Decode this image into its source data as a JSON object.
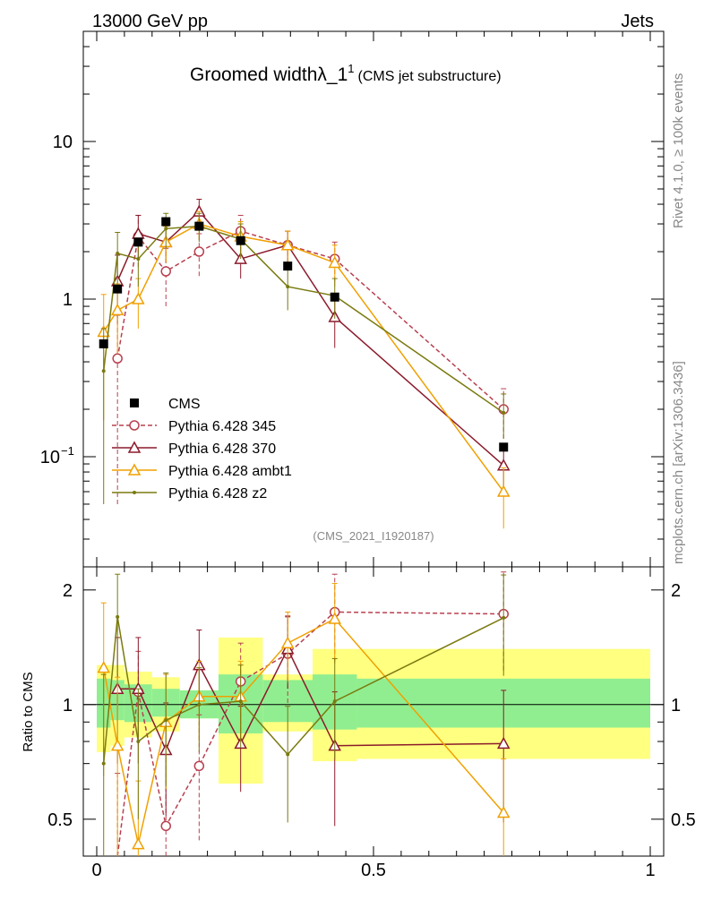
{
  "header": {
    "left": "13000 GeV pp",
    "right": "Jets",
    "side_top": "Rivet 4.1.0, ≥ 100k events",
    "side_bottom": "mcplots.cern.ch [arXiv:1306.3436]"
  },
  "chart_data": {
    "type": "line",
    "title_main": "Groomed widthλ_1",
    "title_sup": "1",
    "title_sub": "(CMS jet substructure)",
    "analysis": "(CMS_2021_I1920187)",
    "xlim": [
      0,
      1
    ],
    "ylim_main": [
      0.02,
      50
    ],
    "ylim_ratio": [
      0.4,
      2.3
    ],
    "ylabel_ratio": "Ratio to CMS",
    "x_ticks": [
      {
        "v": 0,
        "label": "0"
      },
      {
        "v": 0.5,
        "label": "0.5"
      },
      {
        "v": 1,
        "label": "1"
      }
    ],
    "main_ticks": [
      {
        "v": 10,
        "label": "10"
      },
      {
        "v": 1,
        "label": "1"
      },
      {
        "v": 0.1,
        "label": "10"
      }
    ],
    "main_tick_exp": "−1",
    "ratio_ticks": [
      {
        "v": 2,
        "label": "2"
      },
      {
        "v": 1,
        "label": "1"
      },
      {
        "v": 0.5,
        "label": "0.5"
      }
    ],
    "bins": [
      [
        0,
        0.025
      ],
      [
        0.025,
        0.05
      ],
      [
        0.05,
        0.1
      ],
      [
        0.1,
        0.15
      ],
      [
        0.15,
        0.22
      ],
      [
        0.22,
        0.3
      ],
      [
        0.3,
        0.39
      ],
      [
        0.39,
        0.47
      ],
      [
        0.47,
        1.0
      ]
    ],
    "band_inner": [
      [
        0.87,
        1.17
      ],
      [
        0.91,
        1.16
      ],
      [
        0.9,
        1.13
      ],
      [
        0.93,
        1.1
      ],
      [
        0.92,
        1.09
      ],
      [
        0.84,
        1.2
      ],
      [
        0.9,
        1.16
      ],
      [
        0.86,
        1.2
      ],
      [
        0.87,
        1.17
      ]
    ],
    "band_outer": [
      [
        0.75,
        1.27
      ],
      [
        0.78,
        1.27
      ],
      [
        0.82,
        1.22
      ],
      [
        0.85,
        1.18
      ],
      [
        0.92,
        1.09
      ],
      [
        0.62,
        1.5
      ],
      [
        0.85,
        1.2
      ],
      [
        0.71,
        1.4
      ],
      [
        0.72,
        1.4
      ]
    ],
    "cms": {
      "name": "CMS",
      "x": [
        0.0125,
        0.0375,
        0.075,
        0.125,
        0.185,
        0.26,
        0.345,
        0.43,
        0.735
      ],
      "y": [
        0.52,
        1.16,
        2.3,
        3.1,
        2.9,
        2.35,
        1.62,
        1.03,
        0.115
      ]
    },
    "series": [
      {
        "name": "Pythia 6.428 345",
        "color": "#b8404f",
        "marker": "circle",
        "dash": "5,3",
        "x": [
          0.0375,
          0.075,
          0.125,
          0.185,
          0.26,
          0.345,
          0.43,
          0.735
        ],
        "y": [
          0.42,
          2.5,
          1.5,
          2.0,
          2.7,
          2.2,
          1.8,
          0.2
        ],
        "err": [
          0.37,
          0.9,
          0.6,
          0.6,
          0.7,
          0.5,
          0.5,
          0.07
        ],
        "ratio": [
          0.36,
          1.08,
          0.48,
          0.69,
          1.15,
          1.36,
          1.75,
          1.73
        ],
        "rerr": [
          0.3,
          0.3,
          0.3,
          0.25,
          0.3,
          0.35,
          0.45,
          0.5
        ]
      },
      {
        "name": "Pythia 6.428 370",
        "color": "#8b1a2b",
        "marker": "triangle",
        "dash": "",
        "x": [
          0.0375,
          0.075,
          0.125,
          0.185,
          0.26,
          0.345,
          0.43,
          0.735
        ],
        "y": [
          1.3,
          2.6,
          2.3,
          3.6,
          1.8,
          2.2,
          0.77,
          0.088
        ],
        "err": [
          0.6,
          0.8,
          0.6,
          0.7,
          0.45,
          0.5,
          0.28,
          0.03
        ],
        "ratio": [
          1.1,
          1.1,
          0.76,
          1.27,
          0.79,
          1.4,
          0.78,
          0.79
        ],
        "rerr": [
          0.4,
          0.4,
          0.25,
          0.3,
          0.2,
          0.3,
          0.3,
          0.3
        ]
      },
      {
        "name": "Pythia 6.428 ambt1",
        "color": "#f0a000",
        "marker": "triangle",
        "dash": "",
        "x": [
          0.0125,
          0.0375,
          0.075,
          0.125,
          0.185,
          0.26,
          0.345,
          0.43,
          0.735
        ],
        "y": [
          0.62,
          0.85,
          1.0,
          2.3,
          3.0,
          2.5,
          2.2,
          1.7,
          0.06
        ],
        "err": [
          0.45,
          0.4,
          0.35,
          0.6,
          0.6,
          0.6,
          0.5,
          0.5,
          0.025
        ],
        "ratio": [
          1.25,
          0.78,
          0.43,
          0.9,
          1.05,
          1.05,
          1.45,
          1.68,
          0.52
        ],
        "rerr": [
          0.6,
          0.4,
          0.2,
          0.3,
          0.25,
          0.25,
          0.3,
          0.4,
          0.2
        ]
      },
      {
        "name": "Pythia 6.428 z2",
        "color": "#7a7a10",
        "marker": "dot",
        "dash": "",
        "x": [
          0.0125,
          0.0375,
          0.075,
          0.125,
          0.185,
          0.26,
          0.345,
          0.43,
          0.735
        ],
        "y": [
          0.35,
          1.95,
          1.8,
          2.8,
          2.9,
          2.4,
          1.2,
          1.05,
          0.19
        ],
        "err": [
          0.3,
          0.7,
          0.6,
          0.7,
          0.6,
          0.6,
          0.35,
          0.3,
          0.06
        ],
        "ratio": [
          0.7,
          1.7,
          0.8,
          0.91,
          1.0,
          1.02,
          0.74,
          1.02,
          1.69
        ],
        "rerr": [
          0.5,
          0.5,
          0.3,
          0.3,
          0.25,
          0.25,
          0.25,
          0.3,
          0.5
        ]
      }
    ]
  }
}
